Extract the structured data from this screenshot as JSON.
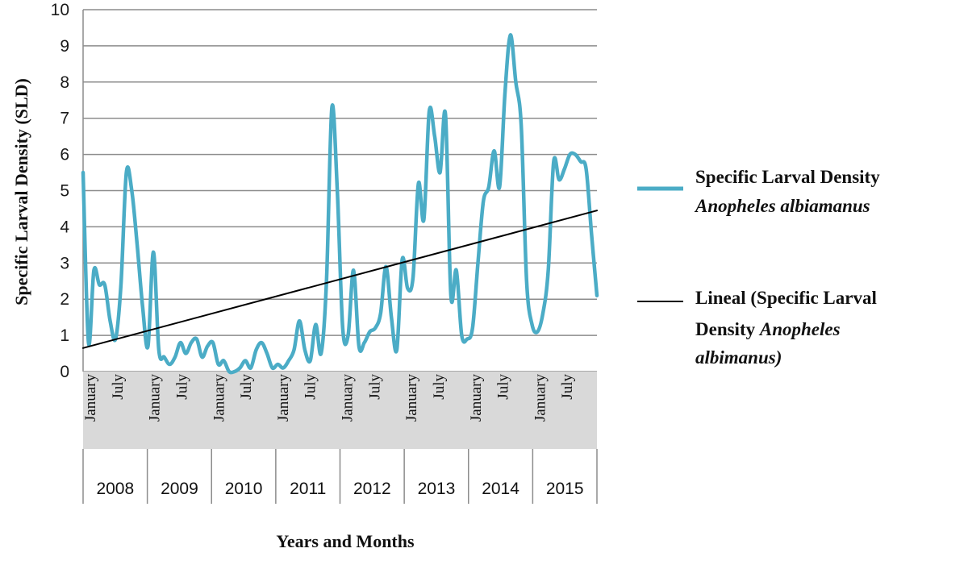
{
  "chart_data": {
    "type": "line",
    "xlabel": "Years and Months",
    "ylabel": "Specific Larval Density (SLD)",
    "ylim": [
      0,
      10
    ],
    "yticks": [
      "0",
      "1",
      "2",
      "3",
      "4",
      "5",
      "6",
      "7",
      "8",
      "9",
      "10"
    ],
    "grid": true,
    "legend_position": "right",
    "years": [
      "2008",
      "2009",
      "2010",
      "2011",
      "2012",
      "2013",
      "2014",
      "2015"
    ],
    "month_tick_labels": [
      "January",
      "July"
    ],
    "x_start": "2008-01",
    "x_end": "2015-12",
    "series": [
      {
        "color": "#4bacc6",
        "x": [
          "2008-01",
          "2008-02",
          "2008-03",
          "2008-04",
          "2008-05",
          "2008-06",
          "2008-07",
          "2008-08",
          "2008-09",
          "2008-10",
          "2008-11",
          "2008-12",
          "2009-01",
          "2009-02",
          "2009-03",
          "2009-04",
          "2009-05",
          "2009-06",
          "2009-07",
          "2009-08",
          "2009-09",
          "2009-10",
          "2009-11",
          "2009-12",
          "2010-01",
          "2010-02",
          "2010-03",
          "2010-04",
          "2010-05",
          "2010-06",
          "2010-07",
          "2010-08",
          "2010-09",
          "2010-10",
          "2010-11",
          "2010-12",
          "2011-01",
          "2011-02",
          "2011-03",
          "2011-04",
          "2011-05",
          "2011-06",
          "2011-07",
          "2011-08",
          "2011-09",
          "2011-10",
          "2011-11",
          "2011-12",
          "2012-01",
          "2012-02",
          "2012-03",
          "2012-04",
          "2012-05",
          "2012-06",
          "2012-07",
          "2012-08",
          "2012-09",
          "2012-10",
          "2012-11",
          "2012-12",
          "2013-01",
          "2013-02",
          "2013-03",
          "2013-04",
          "2013-05",
          "2013-06",
          "2013-07",
          "2013-08",
          "2013-09",
          "2013-10",
          "2013-11",
          "2013-12",
          "2014-01",
          "2014-02",
          "2014-03",
          "2014-04",
          "2014-05",
          "2014-06",
          "2014-07",
          "2014-08",
          "2014-09",
          "2014-10",
          "2014-11",
          "2014-12",
          "2015-01",
          "2015-02",
          "2015-03",
          "2015-04",
          "2015-05",
          "2015-06",
          "2015-07",
          "2015-08",
          "2015-09",
          "2015-10",
          "2015-11",
          "2015-12"
        ],
        "values": [
          5.5,
          0.8,
          2.8,
          2.4,
          2.4,
          1.4,
          0.9,
          2.4,
          5.5,
          5.0,
          3.5,
          1.8,
          0.7,
          3.3,
          0.6,
          0.4,
          0.2,
          0.4,
          0.8,
          0.5,
          0.8,
          0.9,
          0.4,
          0.7,
          0.8,
          0.2,
          0.3,
          0.0,
          0.0,
          0.1,
          0.3,
          0.1,
          0.6,
          0.8,
          0.5,
          0.1,
          0.2,
          0.1,
          0.3,
          0.6,
          1.4,
          0.6,
          0.3,
          1.3,
          0.5,
          2.5,
          7.3,
          5.0,
          1.2,
          1.0,
          2.8,
          0.7,
          0.8,
          1.1,
          1.2,
          1.6,
          2.9,
          1.5,
          0.6,
          3.1,
          2.3,
          2.6,
          5.2,
          4.2,
          7.2,
          6.5,
          5.5,
          7.1,
          2.1,
          2.8,
          1.0,
          0.9,
          1.2,
          3.0,
          4.7,
          5.1,
          6.1,
          5.1,
          7.7,
          9.3,
          8.0,
          6.8,
          2.5,
          1.3,
          1.1,
          1.6,
          2.8,
          5.8,
          5.3,
          5.6,
          6.0,
          6.0,
          5.8,
          5.6,
          3.8,
          2.1
        ]
      },
      {
        "color": "#000000",
        "x": [
          "2008-01",
          "2015-12"
        ],
        "values": [
          0.65,
          4.45
        ]
      }
    ]
  },
  "legend": {
    "series1_line1": "Specific Larval Density",
    "series1_line2": "Anopheles albiamanus",
    "series2_line1": "Lineal (Specific Larval",
    "series2_line2_bold": "Density ",
    "series2_line2_italic": "Anopheles",
    "series2_line3": "albimanus)"
  },
  "colors": {
    "series1": "#4bacc6",
    "trend": "#000000",
    "grid": "#8c8c8c",
    "month_band": "#d9d9d9"
  }
}
